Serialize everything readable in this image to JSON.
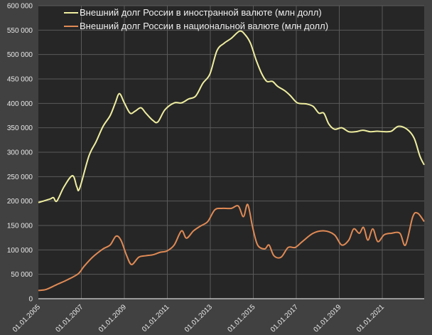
{
  "chart_data": {
    "type": "line",
    "title": "",
    "xlabel": "",
    "ylabel": "",
    "xlim": [
      2005.0,
      2022.95
    ],
    "ylim": [
      0,
      600000
    ],
    "grid": true,
    "legend_position": "top-left",
    "y_ticks": [
      0,
      50000,
      100000,
      150000,
      200000,
      250000,
      300000,
      350000,
      400000,
      450000,
      500000,
      550000,
      600000
    ],
    "y_tick_labels": [
      "0",
      "50 000",
      "100 000",
      "150 000",
      "200 000",
      "250 000",
      "300 000",
      "350 000",
      "400 000",
      "450 000",
      "500 000",
      "550 000",
      "600 000"
    ],
    "x_ticks": [
      2005,
      2007,
      2009,
      2011,
      2013,
      2015,
      2017,
      2019,
      2021
    ],
    "x_tick_labels": [
      "01.01.2005",
      "01.01.2007",
      "01.01.2009",
      "01.01.2011",
      "01.01.2013",
      "01.01.2015",
      "01.01.2017",
      "01.01.2019",
      "01.01.2021"
    ],
    "series": [
      {
        "name": "Внешний долг России в иностранной валюте (млн долл)",
        "color": "#efeea0",
        "x": [
          2005.0,
          2005.53,
          2005.7,
          2005.86,
          2006.19,
          2006.59,
          2006.79,
          2006.92,
          2007.35,
          2007.68,
          2008.01,
          2008.34,
          2008.58,
          2008.77,
          2009.0,
          2009.27,
          2009.5,
          2009.77,
          2010.0,
          2010.33,
          2010.56,
          2010.89,
          2011.32,
          2011.66,
          2011.99,
          2012.32,
          2012.65,
          2012.98,
          2013.31,
          2013.64,
          2013.97,
          2014.37,
          2014.63,
          2014.87,
          2015.13,
          2015.4,
          2015.63,
          2015.89,
          2016.13,
          2016.46,
          2016.72,
          2017.05,
          2017.45,
          2017.78,
          2018.05,
          2018.28,
          2018.51,
          2018.78,
          2019.11,
          2019.44,
          2019.77,
          2020.1,
          2020.43,
          2020.76,
          2021.09,
          2021.42,
          2021.75,
          2022.15,
          2022.48,
          2022.75,
          2022.95
        ],
        "values": [
          197000,
          204000,
          207000,
          200000,
          229000,
          252000,
          229000,
          226000,
          292000,
          321000,
          353000,
          375000,
          401000,
          420000,
          401000,
          380000,
          384000,
          391000,
          380000,
          365000,
          362000,
          387000,
          401000,
          401000,
          409000,
          415000,
          441000,
          460000,
          508000,
          523000,
          533000,
          548000,
          540000,
          523000,
          489000,
          460000,
          445000,
          445000,
          435000,
          426000,
          416000,
          401000,
          399000,
          394000,
          380000,
          380000,
          358000,
          347000,
          350000,
          342000,
          342000,
          345000,
          342000,
          343000,
          342000,
          343000,
          353000,
          347000,
          329000,
          292000,
          274000
        ]
      },
      {
        "name": "Внешний долг России в национальной валюте (млн долл)",
        "color": "#e08a55",
        "x": [
          2005.0,
          2005.36,
          2005.86,
          2006.36,
          2006.85,
          2007.12,
          2007.52,
          2008.01,
          2008.34,
          2008.61,
          2008.84,
          2009.11,
          2009.34,
          2009.67,
          2010.0,
          2010.33,
          2010.66,
          2010.99,
          2011.32,
          2011.66,
          2011.89,
          2012.22,
          2012.55,
          2012.88,
          2013.21,
          2013.54,
          2013.97,
          2014.3,
          2014.54,
          2014.74,
          2014.97,
          2015.2,
          2015.53,
          2015.73,
          2015.96,
          2016.29,
          2016.62,
          2016.95,
          2017.28,
          2017.78,
          2018.28,
          2018.77,
          2019.11,
          2019.44,
          2019.67,
          2019.93,
          2020.13,
          2020.33,
          2020.56,
          2020.79,
          2021.09,
          2021.42,
          2021.82,
          2022.08,
          2022.42,
          2022.65,
          2022.95
        ],
        "values": [
          17000,
          19000,
          29000,
          39000,
          51000,
          66000,
          85000,
          102000,
          110000,
          128000,
          120000,
          88000,
          70000,
          85000,
          88000,
          90000,
          95000,
          98000,
          110000,
          139000,
          124000,
          139000,
          149000,
          158000,
          182000,
          185000,
          185000,
          190000,
          168000,
          193000,
          146000,
          110000,
          102000,
          110000,
          88000,
          85000,
          105000,
          105000,
          117000,
          134000,
          139000,
          131000,
          110000,
          120000,
          143000,
          134000,
          146000,
          120000,
          143000,
          117000,
          131000,
          134000,
          134000,
          110000,
          168000,
          175000,
          158000
        ]
      }
    ]
  }
}
